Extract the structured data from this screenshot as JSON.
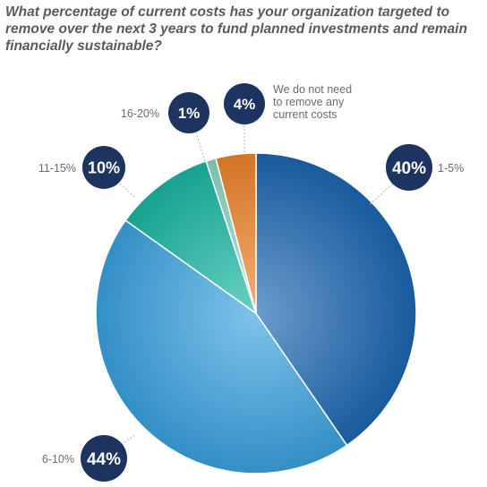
{
  "chart_data": {
    "type": "pie",
    "title": "What percentage of current costs has your organization targeted to remove over the next 3 years to fund planned investments and remain financially sustainable?",
    "slices": [
      {
        "label": "1-5%",
        "value": 40,
        "value_label": "40%",
        "color": "#1b66b1"
      },
      {
        "label": "6-10%",
        "value": 44,
        "value_label": "44%",
        "color": "#3aa3e0"
      },
      {
        "label": "11-15%",
        "value": 10,
        "value_label": "10%",
        "color": "#19b8a3"
      },
      {
        "label": "16-20%",
        "value": 1,
        "value_label": "1%",
        "color": "#8fd6c6"
      },
      {
        "label": "We do not need to remove any current costs",
        "value": 4,
        "value_label": "4%",
        "color": "#f0842a"
      }
    ],
    "start_angle_deg": 0,
    "direction": "clockwise",
    "legend": "none",
    "badge_color": "#1d3461"
  }
}
